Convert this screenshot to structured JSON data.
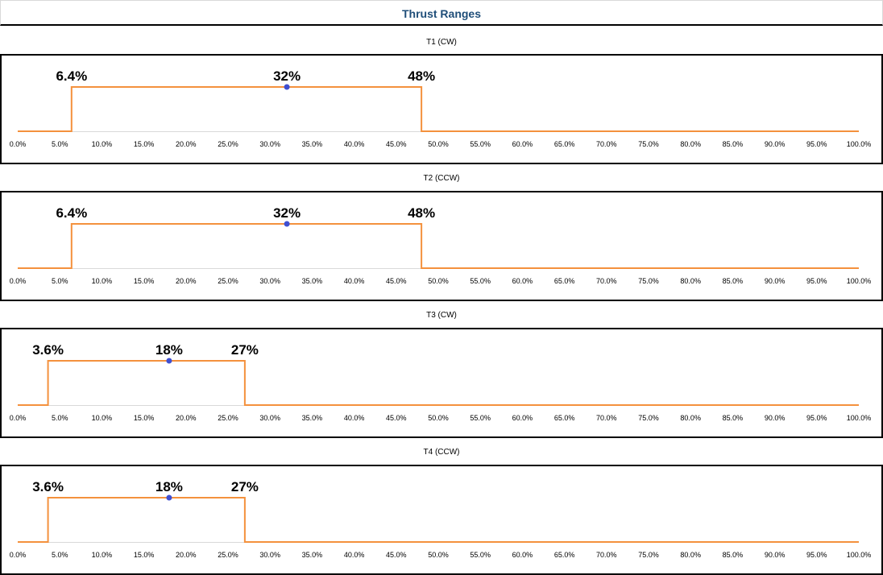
{
  "title": "Thrust Ranges",
  "colors": {
    "line": "#f4913d",
    "marker": "#3f4fd1",
    "title": "#1f4e79"
  },
  "chart_data": [
    {
      "type": "line",
      "title": "T1 (CW)",
      "xlim": [
        0,
        100
      ],
      "ticks": [
        "0.0%",
        "5.0%",
        "10.0%",
        "15.0%",
        "20.0%",
        "25.0%",
        "30.0%",
        "35.0%",
        "40.0%",
        "45.0%",
        "50.0%",
        "55.0%",
        "60.0%",
        "65.0%",
        "70.0%",
        "75.0%",
        "80.0%",
        "85.0%",
        "90.0%",
        "95.0%",
        "100.0%"
      ],
      "range_min": 6.4,
      "range_mid": 32,
      "range_max": 48,
      "labels": {
        "min": "6.4%",
        "mid": "32%",
        "max": "48%"
      }
    },
    {
      "type": "line",
      "title": "T2 (CCW)",
      "xlim": [
        0,
        100
      ],
      "ticks": [
        "0.0%",
        "5.0%",
        "10.0%",
        "15.0%",
        "20.0%",
        "25.0%",
        "30.0%",
        "35.0%",
        "40.0%",
        "45.0%",
        "50.0%",
        "55.0%",
        "60.0%",
        "65.0%",
        "70.0%",
        "75.0%",
        "80.0%",
        "85.0%",
        "90.0%",
        "95.0%",
        "100.0%"
      ],
      "range_min": 6.4,
      "range_mid": 32,
      "range_max": 48,
      "labels": {
        "min": "6.4%",
        "mid": "32%",
        "max": "48%"
      }
    },
    {
      "type": "line",
      "title": "T3 (CW)",
      "xlim": [
        0,
        100
      ],
      "ticks": [
        "0.0%",
        "5.0%",
        "10.0%",
        "15.0%",
        "20.0%",
        "25.0%",
        "30.0%",
        "35.0%",
        "40.0%",
        "45.0%",
        "50.0%",
        "55.0%",
        "60.0%",
        "65.0%",
        "70.0%",
        "75.0%",
        "80.0%",
        "85.0%",
        "90.0%",
        "95.0%",
        "100.0%"
      ],
      "range_min": 3.6,
      "range_mid": 18,
      "range_max": 27,
      "labels": {
        "min": "3.6%",
        "mid": "18%",
        "max": "27%"
      }
    },
    {
      "type": "line",
      "title": "T4 (CCW)",
      "xlim": [
        0,
        100
      ],
      "ticks": [
        "0.0%",
        "5.0%",
        "10.0%",
        "15.0%",
        "20.0%",
        "25.0%",
        "30.0%",
        "35.0%",
        "40.0%",
        "45.0%",
        "50.0%",
        "55.0%",
        "60.0%",
        "65.0%",
        "70.0%",
        "75.0%",
        "80.0%",
        "85.0%",
        "90.0%",
        "95.0%",
        "100.0%"
      ],
      "range_min": 3.6,
      "range_mid": 18,
      "range_max": 27,
      "labels": {
        "min": "3.6%",
        "mid": "18%",
        "max": "27%"
      }
    }
  ]
}
